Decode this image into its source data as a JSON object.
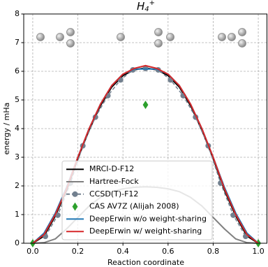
{
  "chart_data": {
    "type": "line",
    "title": {
      "text": "H",
      "subscript": "4",
      "superscript": "+"
    },
    "x_label": "Reaction coordinate",
    "y_label": "energy / mHa",
    "xlim": [
      -0.04,
      1.04
    ],
    "ylim": [
      0,
      8
    ],
    "xticks": [
      {
        "value": 0,
        "label": "0.0"
      },
      {
        "value": 0.2,
        "label": "0.2"
      },
      {
        "value": 0.4,
        "label": "0.4"
      },
      {
        "value": 0.6,
        "label": "0.6"
      },
      {
        "value": 0.8,
        "label": "0.8"
      },
      {
        "value": 1,
        "label": "1.0"
      }
    ],
    "yticks": [
      0,
      1,
      2,
      3,
      4,
      5,
      6,
      7,
      8
    ],
    "grid": true,
    "legend": "lower center",
    "series": [
      {
        "name": "MRCI-D-F12",
        "color": "#000000",
        "style": "line",
        "x": [
          0,
          0.05,
          0.1,
          0.15,
          0.2,
          0.25,
          0.3,
          0.35,
          0.4,
          0.45,
          0.5,
          0.55,
          0.6,
          0.65,
          0.7,
          0.75,
          0.8,
          0.85,
          0.9,
          0.95,
          1
        ],
        "values": [
          0,
          0.25,
          0.95,
          1.85,
          2.95,
          3.95,
          4.8,
          5.45,
          5.85,
          6.05,
          6.12,
          6.05,
          5.85,
          5.45,
          4.8,
          3.95,
          2.95,
          1.85,
          0.95,
          0.25,
          0
        ]
      },
      {
        "name": "Hartree-Fock",
        "color": "#808080",
        "style": "line",
        "x": [
          0,
          0.05,
          0.1,
          0.15,
          0.2,
          0.25,
          0.3,
          0.35,
          0.4,
          0.45,
          0.5,
          0.55,
          0.6,
          0.65,
          0.7,
          0.75,
          0.8,
          0.85,
          0.9,
          0.95,
          1
        ],
        "values": [
          0,
          0.02,
          0.15,
          0.5,
          0.9,
          1.3,
          1.6,
          1.8,
          1.9,
          1.95,
          1.97,
          1.95,
          1.9,
          1.8,
          1.6,
          1.3,
          0.9,
          0.5,
          0.15,
          0.02,
          0
        ]
      },
      {
        "name": "CCSD(T)-F12",
        "color": "#72808f",
        "style": "dashed-marker",
        "x": [
          0.056,
          0.111,
          0.167,
          0.222,
          0.278,
          0.333,
          0.389,
          0.444,
          0.5,
          0.556,
          0.611,
          0.667,
          0.722,
          0.778,
          0.833,
          0.889,
          0.944
        ],
        "values": [
          0.24,
          0.98,
          2.1,
          3.4,
          4.4,
          5.15,
          5.7,
          6.05,
          6.1,
          6.05,
          5.7,
          5.15,
          4.4,
          3.4,
          2.1,
          0.98,
          0.24
        ]
      },
      {
        "name": "CAS AV7Z (Alijah 2008)",
        "color": "#2ca02c",
        "style": "marker",
        "x": [
          0,
          0.5,
          1
        ],
        "values": [
          0,
          4.83,
          0
        ]
      },
      {
        "name": "DeepErwin w/o weight-sharing",
        "color": "#1f77b4",
        "style": "line",
        "x": [
          0,
          0.05,
          0.1,
          0.15,
          0.2,
          0.25,
          0.3,
          0.35,
          0.4,
          0.45,
          0.5,
          0.55,
          0.6,
          0.65,
          0.7,
          0.75,
          0.8,
          0.85,
          0.9,
          0.95,
          1
        ],
        "values": [
          0,
          0.35,
          1.05,
          1.95,
          3.0,
          4.0,
          4.85,
          5.5,
          5.9,
          6.08,
          6.08,
          6.08,
          5.9,
          5.5,
          4.85,
          4.0,
          3.0,
          1.95,
          1.05,
          0.35,
          0
        ]
      },
      {
        "name": "DeepErwin w/ weight-sharing",
        "color": "#d62728",
        "style": "line",
        "x": [
          0,
          0.05,
          0.1,
          0.15,
          0.2,
          0.25,
          0.3,
          0.35,
          0.4,
          0.45,
          0.5,
          0.55,
          0.6,
          0.65,
          0.7,
          0.75,
          0.8,
          0.85,
          0.9,
          0.95,
          1
        ],
        "values": [
          0,
          0.3,
          1.0,
          1.9,
          3.0,
          4.0,
          4.85,
          5.5,
          5.9,
          6.1,
          6.2,
          6.1,
          5.9,
          5.5,
          4.85,
          4.0,
          3.0,
          1.9,
          1.0,
          0.3,
          0
        ]
      }
    ]
  }
}
